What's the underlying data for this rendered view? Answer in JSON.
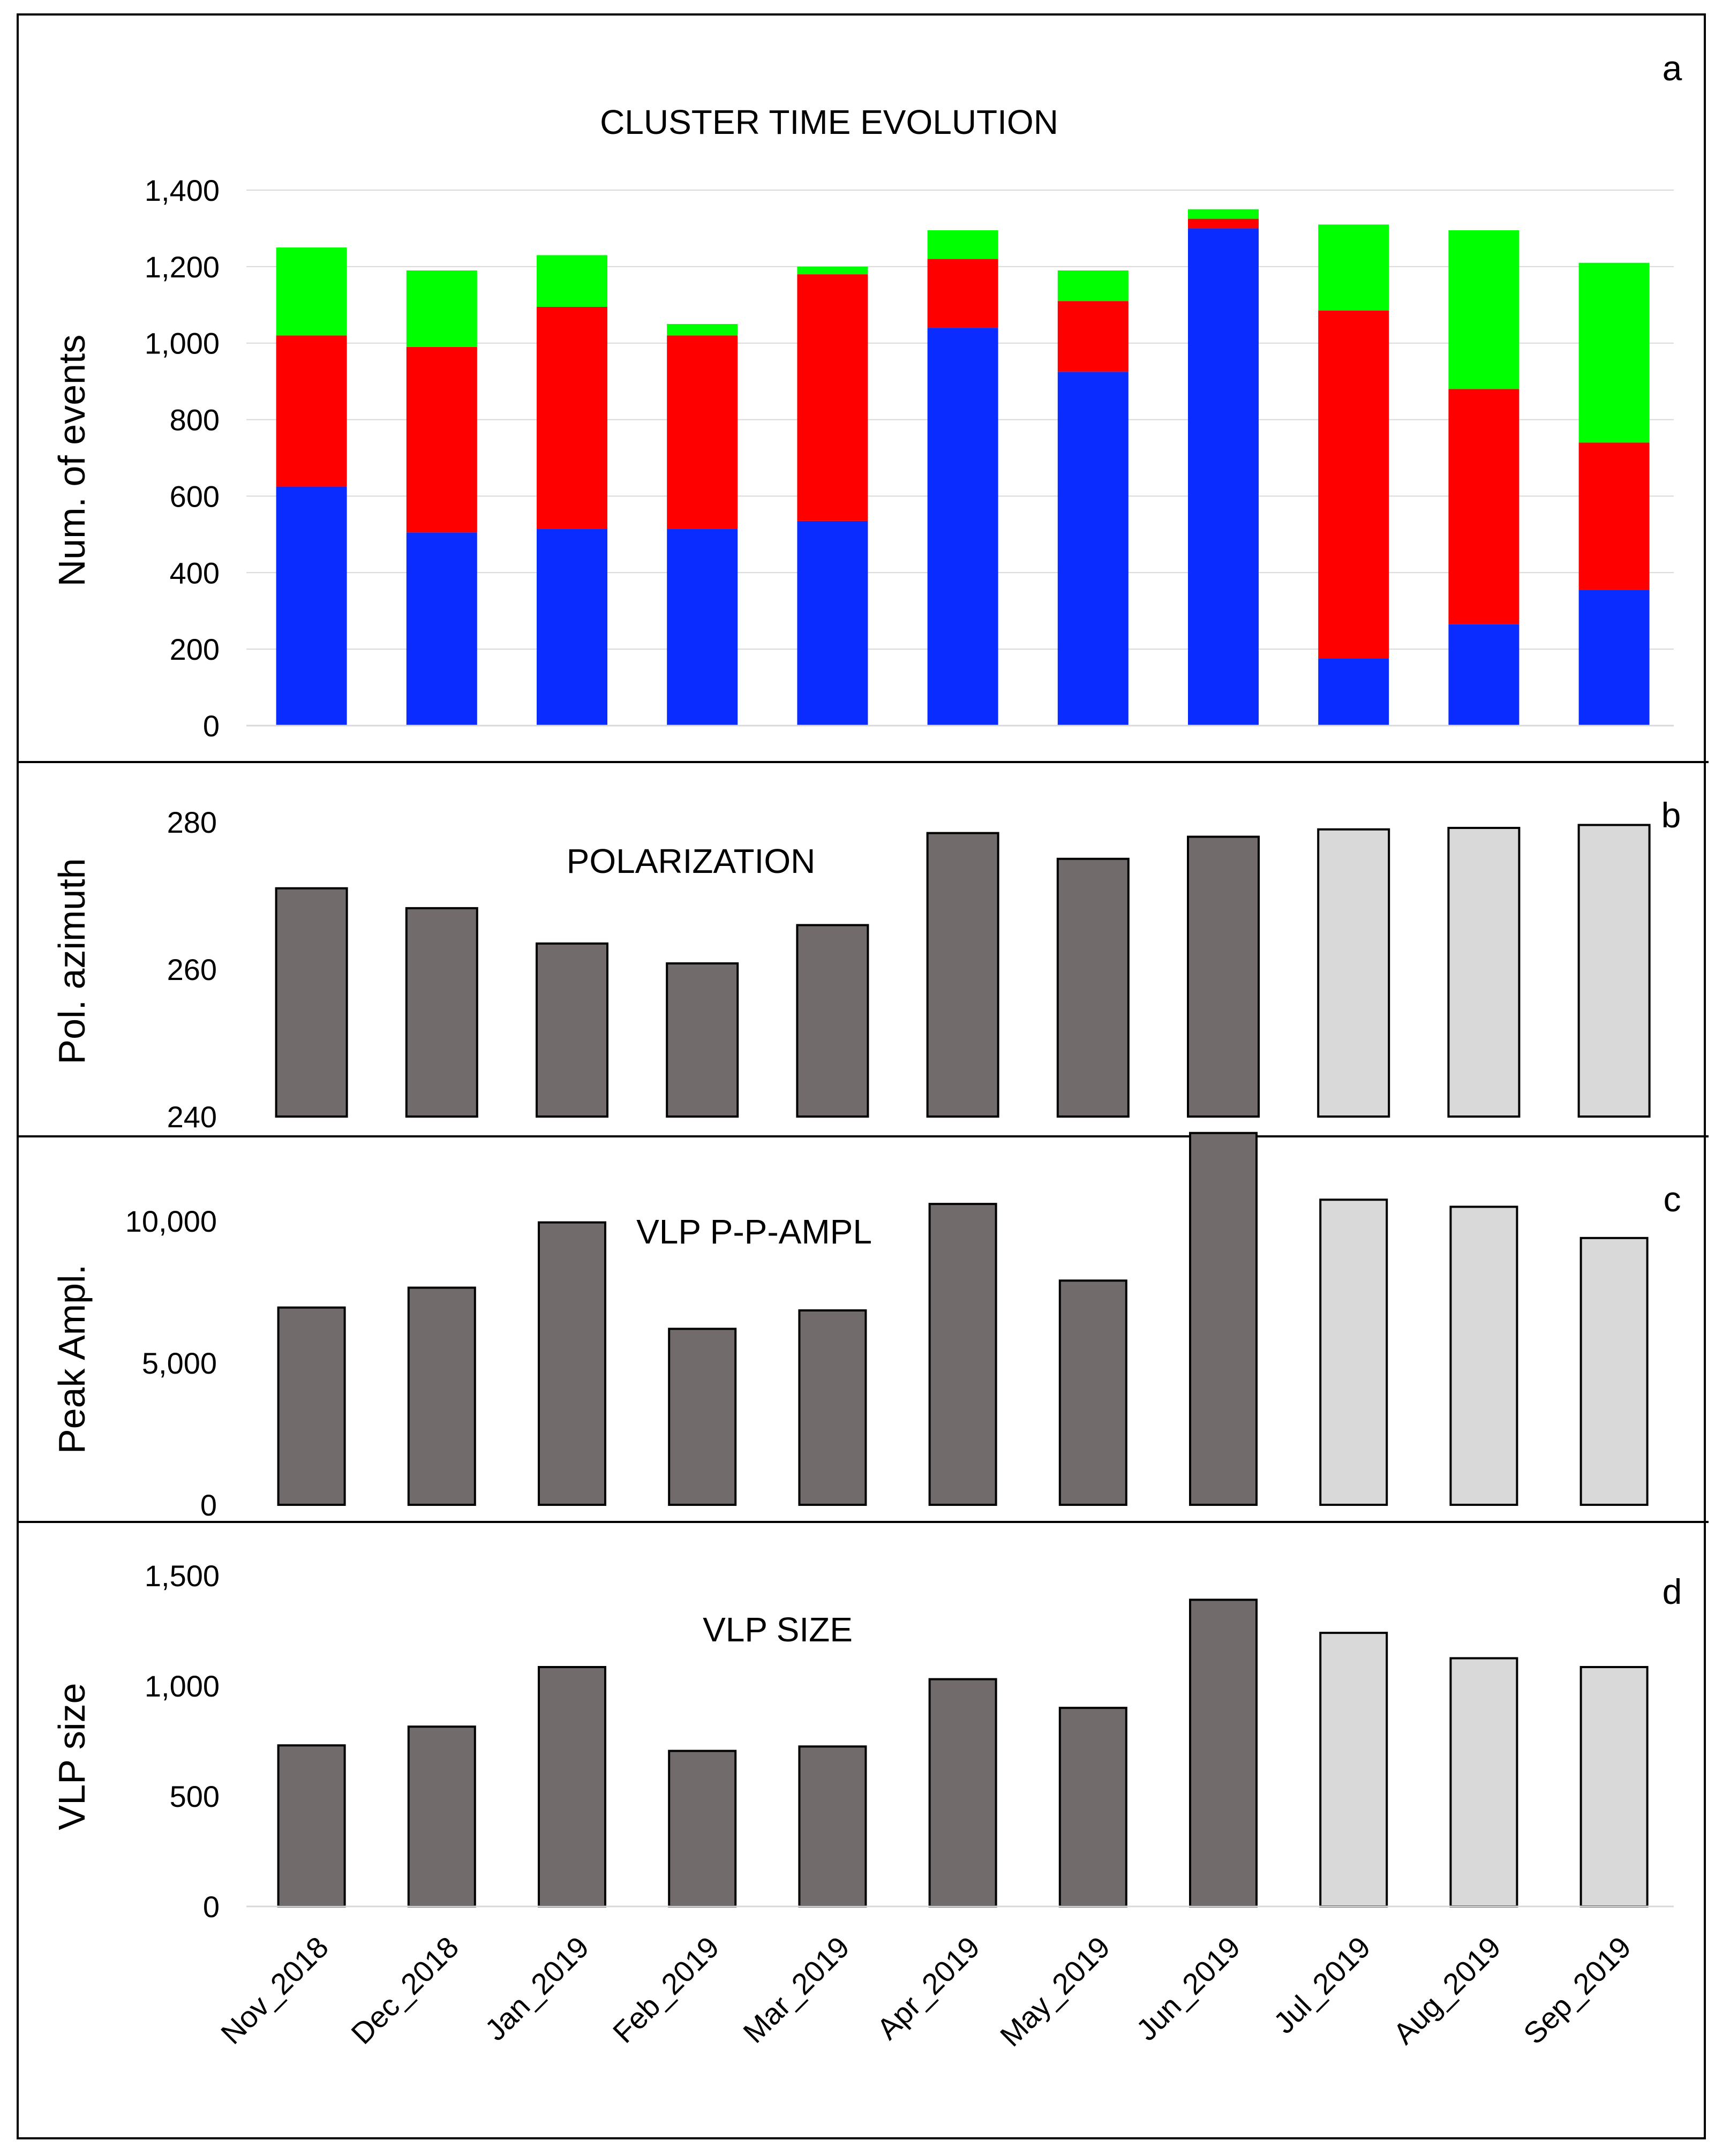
{
  "chart_data": [
    {
      "type": "bar",
      "stacked": true,
      "panel_letter": "a",
      "title": "CLUSTER TIME EVOLUTION",
      "ylabel": "Num. of events",
      "ylim": [
        0,
        1400
      ],
      "yticks": [
        "0",
        "200",
        "400",
        "600",
        "800",
        "1,000",
        "1,200",
        "1,400"
      ],
      "grid": true,
      "categories": [
        "Nov_2018",
        "Dec_2018",
        "Jan_2019",
        "Feb_2019",
        "Mar_2019",
        "Apr_2019",
        "May_2019",
        "Jun_2019",
        "Jul_2019",
        "Aug_2019",
        "Sep_2019"
      ],
      "series": [
        {
          "color": "#0a2cff",
          "values": [
            625,
            505,
            515,
            515,
            535,
            1040,
            925,
            1300,
            175,
            265,
            355
          ]
        },
        {
          "color": "#ff0000",
          "values": [
            395,
            485,
            580,
            505,
            645,
            180,
            185,
            25,
            910,
            615,
            385
          ]
        },
        {
          "color": "#00ff00",
          "values": [
            230,
            200,
            135,
            30,
            20,
            75,
            80,
            25,
            225,
            415,
            470
          ]
        }
      ]
    },
    {
      "type": "bar",
      "panel_letter": "b",
      "title": "POLARIZATION",
      "ylabel": "Pol. azimuth",
      "ylim": [
        240,
        280
      ],
      "yticks": [
        "240",
        "260",
        "280"
      ],
      "categories": [
        "Nov_2018",
        "Dec_2018",
        "Jan_2019",
        "Feb_2019",
        "Mar_2019",
        "Apr_2019",
        "May_2019",
        "Jun_2019",
        "Jul_2019",
        "Aug_2019",
        "Sep_2019"
      ],
      "values": [
        271,
        268.3,
        263.5,
        260.8,
        266,
        278.5,
        275,
        278,
        279,
        279.2,
        279.6
      ],
      "colors": [
        "#716b6b",
        "#716b6b",
        "#716b6b",
        "#716b6b",
        "#716b6b",
        "#716b6b",
        "#716b6b",
        "#716b6b",
        "#d9d9d9",
        "#d9d9d9",
        "#d9d9d9"
      ]
    },
    {
      "type": "bar",
      "panel_letter": "c",
      "title": "VLP P-P-AMPL",
      "ylabel": "Peak Ampl.",
      "ylim": [
        0,
        15000
      ],
      "yticks": [
        "0",
        "5,000",
        "10,000"
      ],
      "ytick_values": [
        0,
        5000,
        10000
      ],
      "categories": [
        "Nov_2018",
        "Dec_2018",
        "Jan_2019",
        "Feb_2019",
        "Mar_2019",
        "Apr_2019",
        "May_2019",
        "Jun_2019",
        "Jul_2019",
        "Aug_2019",
        "Sep_2019"
      ],
      "values": [
        6950,
        7650,
        9950,
        6200,
        6850,
        10600,
        7900,
        13100,
        10750,
        10500,
        9400
      ],
      "colors": [
        "#716b6b",
        "#716b6b",
        "#716b6b",
        "#716b6b",
        "#716b6b",
        "#716b6b",
        "#716b6b",
        "#716b6b",
        "#d9d9d9",
        "#d9d9d9",
        "#d9d9d9"
      ]
    },
    {
      "type": "bar",
      "panel_letter": "d",
      "title": "VLP SIZE",
      "ylabel": "VLP size",
      "ylim": [
        0,
        1500
      ],
      "yticks": [
        "0",
        "500",
        "1,000",
        "1,500"
      ],
      "ytick_values": [
        0,
        500,
        1000,
        1500
      ],
      "categories": [
        "Nov_2018",
        "Dec_2018",
        "Jan_2019",
        "Feb_2019",
        "Mar_2019",
        "Apr_2019",
        "May_2019",
        "Jun_2019",
        "Jul_2019",
        "Aug_2019",
        "Sep_2019"
      ],
      "values": [
        730,
        815,
        1085,
        705,
        725,
        1030,
        900,
        1390,
        1240,
        1125,
        1085
      ],
      "colors": [
        "#716b6b",
        "#716b6b",
        "#716b6b",
        "#716b6b",
        "#716b6b",
        "#716b6b",
        "#716b6b",
        "#716b6b",
        "#d9d9d9",
        "#d9d9d9",
        "#d9d9d9"
      ]
    }
  ]
}
